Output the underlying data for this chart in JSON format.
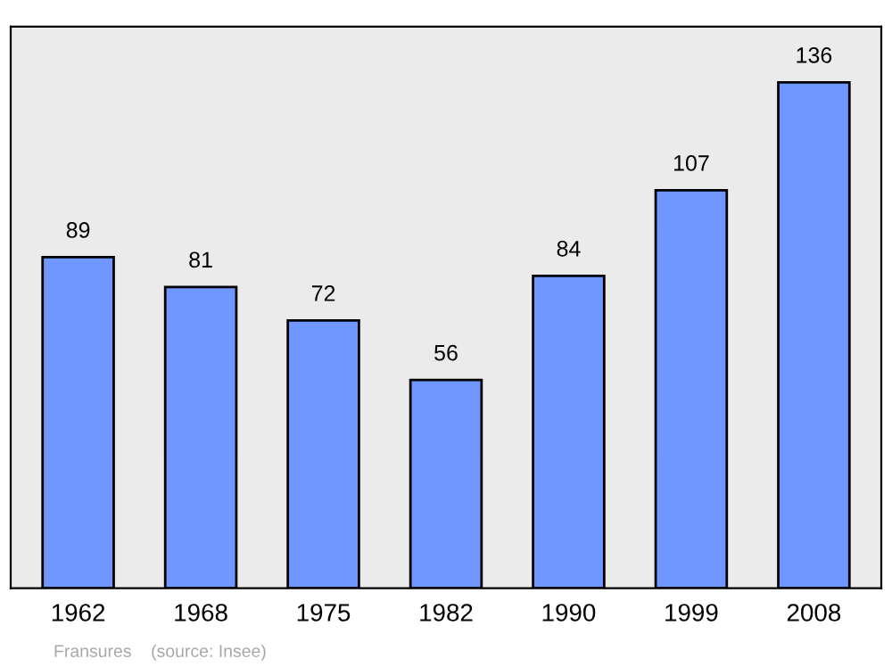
{
  "chart_data": {
    "type": "bar",
    "categories": [
      "1962",
      "1968",
      "1975",
      "1982",
      "1990",
      "1999",
      "2008"
    ],
    "values": [
      89,
      81,
      72,
      56,
      84,
      107,
      136
    ],
    "color": "#7097ff",
    "data_labels": true,
    "grid": false,
    "annotations": [
      "Fransures    (source: Insee)"
    ]
  }
}
